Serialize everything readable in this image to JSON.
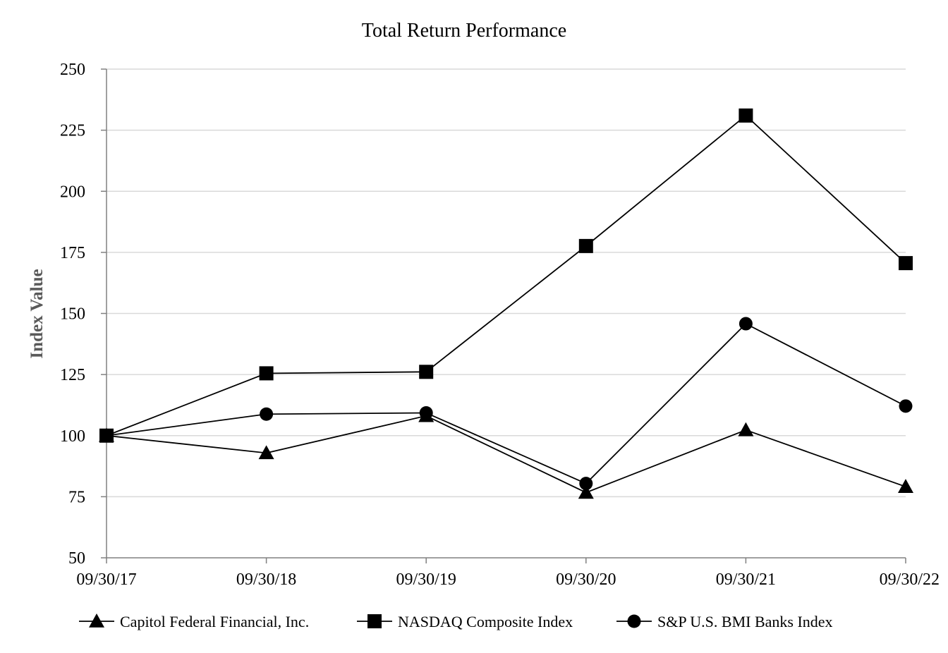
{
  "chart_data": {
    "type": "line",
    "title": "Total Return Performance",
    "xlabel": "",
    "ylabel": "Index Value",
    "categories": [
      "09/30/17",
      "09/30/18",
      "09/30/19",
      "09/30/20",
      "09/30/21",
      "09/30/22"
    ],
    "ylim": [
      50,
      250
    ],
    "yticks": [
      50,
      75,
      100,
      125,
      150,
      175,
      200,
      225,
      250
    ],
    "grid": true,
    "legend_position": "bottom",
    "series": [
      {
        "name": "Capitol Federal Financial, Inc.",
        "marker": "triangle",
        "values": [
          100.0,
          92.9,
          108.1,
          76.7,
          102.3,
          79.1
        ]
      },
      {
        "name": "NASDAQ Composite Index",
        "marker": "square",
        "values": [
          100.0,
          125.5,
          126.1,
          177.6,
          231.0,
          170.6
        ]
      },
      {
        "name": "S&P U.S. BMI Banks Index",
        "marker": "circle",
        "values": [
          100.0,
          108.8,
          109.3,
          80.4,
          145.8,
          112.1
        ]
      }
    ]
  }
}
